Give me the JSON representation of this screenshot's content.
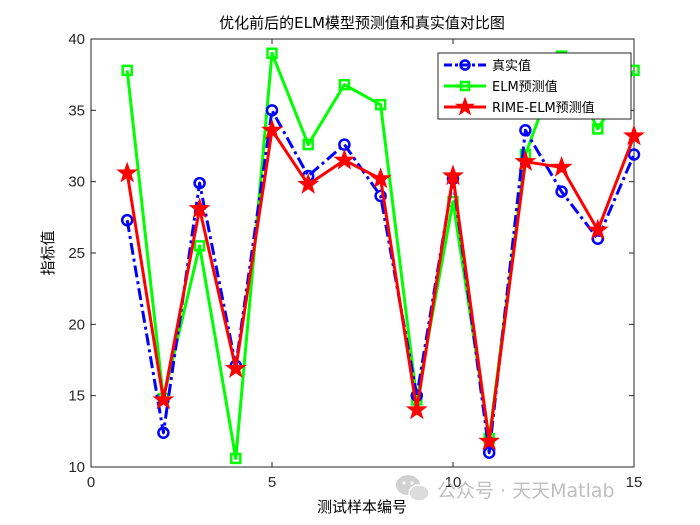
{
  "chart_data": {
    "type": "line",
    "title": "优化前后的ELM模型预测值和真实值对比图",
    "xlabel": "测试样本编号",
    "ylabel": "指标值",
    "xlim": [
      0,
      15
    ],
    "ylim": [
      10,
      40
    ],
    "x_ticks": [
      0,
      5,
      10,
      15
    ],
    "y_ticks": [
      10,
      15,
      20,
      25,
      30,
      35,
      40
    ],
    "grid": false,
    "legend_position": "top-right",
    "x": [
      1,
      2,
      3,
      4,
      5,
      6,
      7,
      8,
      9,
      10,
      11,
      12,
      13,
      14,
      15
    ],
    "series": [
      {
        "name": "真实值",
        "color": "#0000ff",
        "line_style": "dash-dot",
        "marker": "circle",
        "values": [
          27.3,
          12.4,
          29.9,
          17.1,
          35.0,
          30.4,
          32.6,
          29.0,
          15.0,
          30.2,
          11.0,
          33.6,
          29.3,
          26.0,
          31.9
        ]
      },
      {
        "name": "ELM预测值",
        "color": "#00ff00",
        "line_style": "solid",
        "marker": "square",
        "values": [
          37.8,
          14.8,
          25.5,
          10.6,
          39.0,
          32.6,
          36.8,
          35.4,
          14.7,
          28.6,
          12.0,
          31.9,
          38.8,
          33.7,
          37.8
        ]
      },
      {
        "name": "RIME-ELM预测值",
        "color": "#ff0000",
        "line_style": "solid",
        "marker": "star",
        "values": [
          30.6,
          14.7,
          28.1,
          16.9,
          33.6,
          29.8,
          31.5,
          30.2,
          14.0,
          30.4,
          11.8,
          31.4,
          31.0,
          26.6,
          33.2
        ]
      }
    ]
  },
  "watermark": {
    "text": "公众号 · 天天Matlab",
    "icon": "wechat-icon"
  }
}
